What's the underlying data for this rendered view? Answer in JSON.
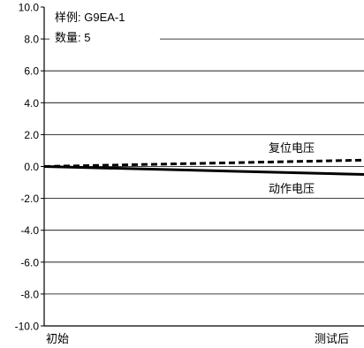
{
  "chart_data": {
    "type": "line",
    "title": "",
    "xlabel": "",
    "ylabel": "",
    "x_categories": [
      "初始",
      "测试后"
    ],
    "ylim": [
      -10.0,
      10.0
    ],
    "y_ticks": [
      "10.0",
      "8.0",
      "6.0",
      "4.0",
      "2.0",
      "0.0",
      "-2.0",
      "-4.0",
      "-6.0",
      "-8.0",
      "-10.0"
    ],
    "grid": true,
    "legend": {
      "sample": "样例: G9EA-1",
      "count": "数量: 5"
    },
    "series": [
      {
        "name": "复位电压",
        "style": "dashed",
        "values": [
          0.0,
          0.4
        ]
      },
      {
        "name": "动作电压",
        "style": "solid",
        "values": [
          0.0,
          -0.5
        ]
      }
    ]
  }
}
